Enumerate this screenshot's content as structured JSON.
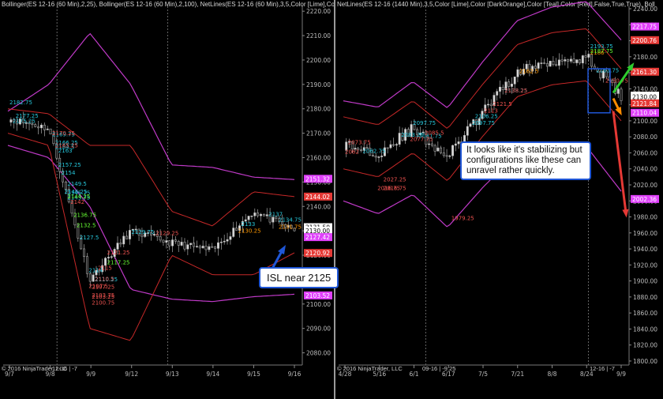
{
  "left": {
    "header": "Bollinger(ES 12-16 (60 Min),2,25), Bollinger(ES 12-16 (60 Min),2,100), NetLines(ES 12-16 (60 Min),3,5,Color [Lime],Col",
    "copyright": "© 2016 NinjaTrader, LLC",
    "contract_tag": "12-16 | -7",
    "x_ticks": [
      "9/7",
      "9/8",
      "9/9",
      "9/12",
      "9/13",
      "9/14",
      "9/15",
      "9/16"
    ],
    "y_ticks": [
      "2220.00",
      "2210.00",
      "2200.00",
      "2190.00",
      "2180.00",
      "2170.00",
      "2160.00",
      "2150.00",
      "2140.00",
      "2130.00",
      "2120.00",
      "2110.00",
      "2100.00",
      "2090.00",
      "2080.00"
    ],
    "price_badges": [
      {
        "label": "2151.32",
        "color": "#e040fb"
      },
      {
        "label": "2144.02",
        "color": "#e53935"
      },
      {
        "label": "2131.50",
        "color": "#ffffff"
      },
      {
        "label": "2130.00",
        "color": "#ffffff"
      },
      {
        "label": "2127.42",
        "color": "#e040fb"
      },
      {
        "label": "2120.92",
        "color": "#e53935"
      },
      {
        "label": "2103.52",
        "color": "#e040fb"
      }
    ],
    "annotations": [
      {
        "text": "2182.75",
        "color": "#26c6da"
      },
      {
        "text": "2177.25",
        "color": "#26c6da"
      },
      {
        "text": "2175.25",
        "color": "#26c6da"
      },
      {
        "text": "2169.75",
        "color": "#26c6da"
      },
      {
        "text": "2164.5",
        "color": "#26c6da"
      },
      {
        "text": "2166.25",
        "color": "#26c6da"
      },
      {
        "text": "2163",
        "color": "#26c6da"
      },
      {
        "text": "2157.25",
        "color": "#26c6da"
      },
      {
        "text": "2154",
        "color": "#26c6da"
      },
      {
        "text": "2149.5",
        "color": "#26c6da"
      },
      {
        "text": "2145.75",
        "color": "#26c6da"
      },
      {
        "text": "2146.25",
        "color": "#26c6da"
      },
      {
        "text": "2143.75",
        "color": "#26c6da"
      },
      {
        "text": "2137",
        "color": "#26c6da"
      },
      {
        "text": "2134.75",
        "color": "#26c6da"
      },
      {
        "text": "2133",
        "color": "#26c6da"
      },
      {
        "text": "2129.75",
        "color": "#26c6da"
      },
      {
        "text": "2127.5",
        "color": "#26c6da"
      },
      {
        "text": "2114",
        "color": "#26c6da"
      },
      {
        "text": "2110.25",
        "color": "#26c6da"
      },
      {
        "text": "2170.25",
        "color": "#ef5350"
      },
      {
        "text": "2165.25",
        "color": "#ef5350"
      },
      {
        "text": "2142",
        "color": "#ef5350"
      },
      {
        "text": "2129.25",
        "color": "#ef5350"
      },
      {
        "text": "2121.25",
        "color": "#ef5350"
      },
      {
        "text": "2115",
        "color": "#ef5350"
      },
      {
        "text": "2110.5",
        "color": "#ef5350"
      },
      {
        "text": "2107.5",
        "color": "#ef5350"
      },
      {
        "text": "2103.75",
        "color": "#ef5350"
      },
      {
        "text": "2100.75",
        "color": "#ef5350"
      },
      {
        "text": "2103.25",
        "color": "#ef5350"
      },
      {
        "text": "2107.25",
        "color": "#ef5350"
      },
      {
        "text": "2131.75",
        "color": "#ff9800"
      },
      {
        "text": "2130.25",
        "color": "#ff9800"
      },
      {
        "text": "2144.25",
        "color": "#66ff33"
      },
      {
        "text": "2136.75",
        "color": "#66ff33"
      },
      {
        "text": "2132.5",
        "color": "#66ff33"
      },
      {
        "text": "2117.25",
        "color": "#66ff33"
      }
    ],
    "note": "ISL near 2125"
  },
  "right": {
    "header": "NetLines(ES 12-16 (1440 Min),3,5,Color [Lime],Color [DarkOrange],Color [Teal],Color [Red],False,True,True), Boll",
    "copyright": "© 2016 NinjaTrader, LLC",
    "contract_tag_1": "09-16 | -9.25",
    "contract_tag_2": "12-16 | -7",
    "x_ticks": [
      "4/28",
      "5/16",
      "6/1",
      "6/17",
      "7/5",
      "7/21",
      "8/8",
      "8/24",
      "9/9"
    ],
    "y_ticks": [
      "2240.00",
      "2220.00",
      "2200.00",
      "2180.00",
      "2160.00",
      "2140.00",
      "2120.00",
      "2100.00",
      "2080.00",
      "2060.00",
      "2040.00",
      "2020.00",
      "2000.00",
      "1980.00",
      "1960.00",
      "1940.00",
      "1920.00",
      "1900.00",
      "1880.00",
      "1860.00",
      "1840.00",
      "1820.00",
      "1800.00"
    ],
    "price_badges": [
      {
        "label": "2217.75",
        "color": "#e040fb"
      },
      {
        "label": "2200.76",
        "color": "#e53935"
      },
      {
        "label": "2161.30",
        "color": "#e53935"
      },
      {
        "label": "2131.50",
        "color": "#ffffff"
      },
      {
        "label": "2130.00",
        "color": "#ffffff"
      },
      {
        "label": "2121.84",
        "color": "#e53935"
      },
      {
        "label": "2110.04",
        "color": "#e040fb"
      },
      {
        "label": "2002.36",
        "color": "#e040fb"
      }
    ],
    "annotations": [
      {
        "text": "2097.75",
        "color": "#26c6da"
      },
      {
        "text": "2081.75",
        "color": "#26c6da"
      },
      {
        "text": "2062.75",
        "color": "#26c6da"
      },
      {
        "text": "2083.25",
        "color": "#26c6da"
      },
      {
        "text": "2106.25",
        "color": "#26c6da"
      },
      {
        "text": "2097.75",
        "color": "#26c6da"
      },
      {
        "text": "2193.75",
        "color": "#26c6da"
      },
      {
        "text": "2163.75",
        "color": "#26c6da"
      },
      {
        "text": "2138.25",
        "color": "#26c6da"
      },
      {
        "text": "2077.75",
        "color": "#ef5350"
      },
      {
        "text": "2027.25",
        "color": "#ef5350"
      },
      {
        "text": "2016.75",
        "color": "#ef5350"
      },
      {
        "text": "2121.5",
        "color": "#ef5350"
      },
      {
        "text": "2113",
        "color": "#ef5350"
      },
      {
        "text": "2085.5",
        "color": "#ef5350"
      },
      {
        "text": "2073.75",
        "color": "#ef5350"
      },
      {
        "text": "2062",
        "color": "#ef5350"
      },
      {
        "text": "2016.75",
        "color": "#ef5350"
      },
      {
        "text": "1979.25",
        "color": "#ef5350"
      },
      {
        "text": "2150.75",
        "color": "#ef5350"
      },
      {
        "text": "2138.25",
        "color": "#ef5350"
      },
      {
        "text": "2186",
        "color": "#ff9800"
      },
      {
        "text": "2162.5",
        "color": "#ff9800"
      },
      {
        "text": "2187.75",
        "color": "#66ff33"
      }
    ],
    "note": "It looks like it's stabilizing but configurations like these can unravel rather quickly."
  },
  "chart_data": [
    {
      "type": "candlestick",
      "instrument": "ES 12-16 (60 Min)",
      "x": [
        "9/7",
        "9/8",
        "9/9",
        "9/12",
        "9/13",
        "9/14",
        "9/15",
        "9/16"
      ],
      "close": [
        2176,
        2172,
        2110,
        2130,
        2125,
        2122,
        2138,
        2130
      ],
      "ylim": [
        2075,
        2222
      ],
      "indicators": [
        "Bollinger(2,25)",
        "Bollinger(2,100)",
        "NetLines(3,5)"
      ],
      "bollinger_25_upper": [
        2180,
        2178,
        2165,
        2165,
        2138,
        2132,
        2146,
        2144
      ],
      "bollinger_25_lower": [
        2170,
        2165,
        2090,
        2085,
        2120,
        2112,
        2112,
        2121
      ],
      "bollinger_100_upper": [
        2179,
        2190,
        2211,
        2190,
        2157,
        2156,
        2152,
        2151
      ],
      "bollinger_100_lower": [
        2165,
        2160,
        2140,
        2106,
        2102,
        2101,
        2103,
        2104
      ]
    },
    {
      "type": "candlestick",
      "instrument": "ES 12-16 (1440 Min)",
      "x": [
        "4/28",
        "5/16",
        "6/1",
        "6/17",
        "7/5",
        "7/21",
        "8/8",
        "8/24",
        "9/9"
      ],
      "close": [
        2070,
        2060,
        2090,
        2055,
        2110,
        2160,
        2175,
        2180,
        2130
      ],
      "ylim": [
        1795,
        2243
      ],
      "projections": [
        {
          "color": "lime",
          "from": 2135,
          "to": 2168
        },
        {
          "color": "darkorange",
          "from": 2128,
          "to": 2112
        },
        {
          "color": "red",
          "from": 2112,
          "to": 1985
        }
      ]
    }
  ]
}
